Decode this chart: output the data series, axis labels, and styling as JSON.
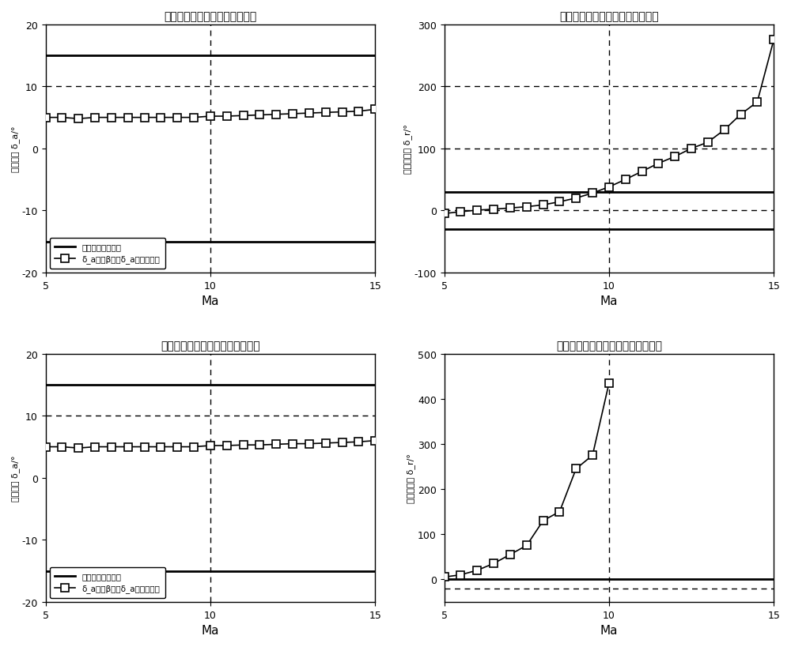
{
  "subplots": [
    {
      "title": "副翼诱导侧滑策略副翼偏量需求",
      "xlabel": "Ma",
      "ylabel": "副翼偏量 δ_a/(°)",
      "ylim": [
        -20,
        20
      ],
      "xlim": [
        5,
        15
      ],
      "xticks": [
        5,
        10,
        15
      ],
      "yticks": [
        -20,
        -10,
        0,
        10,
        20
      ],
      "hlines_solid": [
        15.0,
        -15.0
      ],
      "hlines_dashed": [
        10.0
      ],
      "vlines_dashed": [
        10.0
      ],
      "data_x": [
        5.0,
        5.5,
        6.0,
        6.5,
        7.0,
        7.5,
        8.0,
        8.5,
        9.0,
        9.5,
        10.0,
        10.5,
        11.0,
        11.5,
        12.0,
        12.5,
        13.0,
        13.5,
        14.0,
        14.5,
        15.0
      ],
      "data_y": [
        5.0,
        5.0,
        4.8,
        5.0,
        5.0,
        5.0,
        5.0,
        5.0,
        5.0,
        5.0,
        5.2,
        5.2,
        5.3,
        5.4,
        5.5,
        5.6,
        5.7,
        5.8,
        5.9,
        6.0,
        6.3
      ],
      "has_legend": true
    },
    {
      "title": "副翼诱导侧滑策略方向舵偏量需求",
      "xlabel": "Ma",
      "ylabel": "方向舵偏量 δ_r/(°)",
      "ylim": [
        -100,
        300
      ],
      "xlim": [
        5,
        15
      ],
      "xticks": [
        5,
        10,
        15
      ],
      "yticks": [
        -100,
        0,
        100,
        200,
        300
      ],
      "hlines_solid": [
        30.0,
        -30.0
      ],
      "hlines_dashed": [
        0.0,
        100.0,
        200.0
      ],
      "vlines_dashed": [
        10.0
      ],
      "data_x": [
        5.0,
        5.5,
        6.0,
        6.5,
        7.0,
        7.5,
        8.0,
        8.5,
        9.0,
        9.5,
        10.0,
        10.5,
        11.0,
        11.5,
        12.0,
        12.5,
        13.0,
        13.5,
        14.0,
        14.5,
        15.0
      ],
      "data_y": [
        -5.0,
        -2.0,
        0.5,
        2.0,
        4.0,
        6.0,
        9.0,
        14.0,
        20.0,
        28.0,
        38.0,
        50.0,
        63.0,
        76.0,
        87.0,
        100.0,
        110.0,
        130.0,
        155.0,
        175.0,
        275.0
      ],
      "has_legend": false
    },
    {
      "title": "方向舵诱导侧滑策略副翼偏量需求",
      "xlabel": "Ma",
      "ylabel": "副翼偏量 δ_a/(°)",
      "ylim": [
        -20,
        20
      ],
      "xlim": [
        5,
        15
      ],
      "xticks": [
        5,
        10,
        15
      ],
      "yticks": [
        -20,
        -10,
        0,
        10,
        20
      ],
      "hlines_solid": [
        15.0,
        -15.0
      ],
      "hlines_dashed": [
        10.0
      ],
      "vlines_dashed": [
        10.0
      ],
      "data_x": [
        5.0,
        5.5,
        6.0,
        6.5,
        7.0,
        7.5,
        8.0,
        8.5,
        9.0,
        9.5,
        10.0,
        10.5,
        11.0,
        11.5,
        12.0,
        12.5,
        13.0,
        13.5,
        14.0,
        14.5,
        15.0
      ],
      "data_y": [
        5.0,
        5.0,
        4.8,
        5.0,
        5.0,
        5.0,
        5.0,
        5.0,
        5.0,
        5.0,
        5.2,
        5.2,
        5.3,
        5.3,
        5.4,
        5.5,
        5.5,
        5.6,
        5.7,
        5.8,
        6.0
      ],
      "has_legend": true
    },
    {
      "title": "方向舵诱导侧滑策略方向舵偏量需求",
      "xlabel": "Ma",
      "ylabel": "方向舵偏量 δ_r/(°)",
      "ylim": [
        -50,
        500
      ],
      "xlim": [
        5,
        15
      ],
      "xticks": [
        5,
        10,
        15
      ],
      "yticks": [
        0,
        100,
        200,
        300,
        400,
        500
      ],
      "hlines_solid": [
        0.0
      ],
      "hlines_dashed": [
        -20.0
      ],
      "vlines_dashed": [
        10.0
      ],
      "data_x": [
        5.0,
        5.5,
        6.0,
        6.5,
        7.0,
        7.5,
        8.0,
        8.5,
        9.0,
        9.5,
        10.0
      ],
      "data_y": [
        5.0,
        10.0,
        20.0,
        35.0,
        55.0,
        75.0,
        130.0,
        150.0,
        245.0,
        275.0,
        435.0
      ],
      "has_legend": false
    }
  ],
  "legend_label1": "副翼可用偏量范围",
  "legend_label2": "δ_a诱导β策略δ_a总偏量需求"
}
